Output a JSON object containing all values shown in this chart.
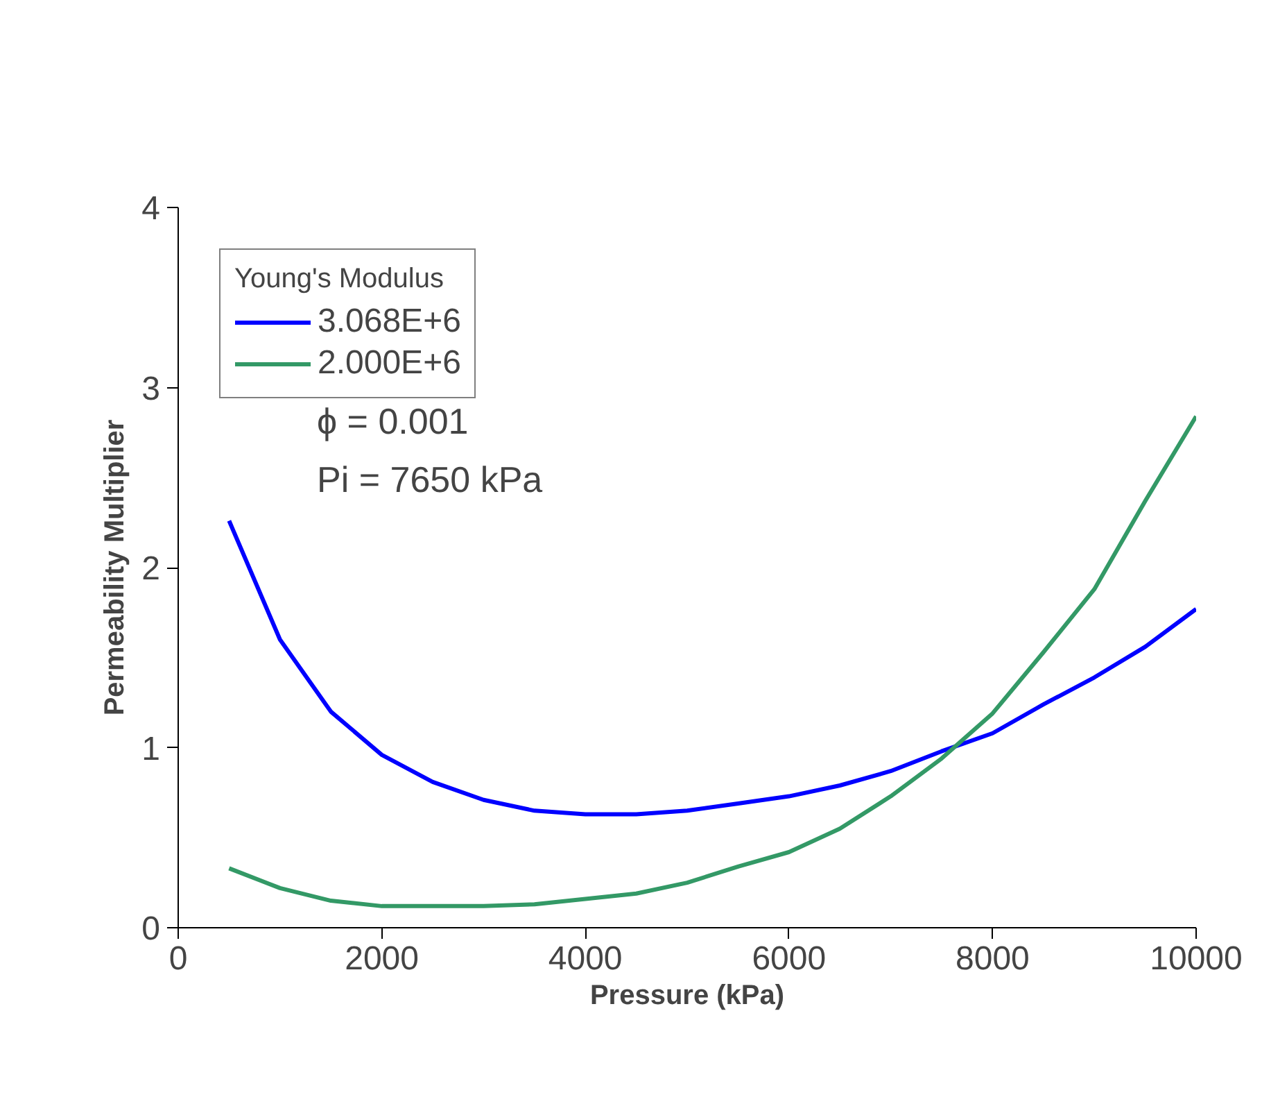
{
  "chart_data": {
    "type": "line",
    "xlabel": "Pressure (kPa)",
    "ylabel": "Permeability Multiplier",
    "legend_title": "Young's Modulus",
    "legend": "top left",
    "grid": false,
    "marker": "none",
    "line_style": "solid",
    "x": [
      500,
      1000,
      1500,
      2000,
      2500,
      3000,
      3500,
      4000,
      4500,
      5000,
      5500,
      6000,
      6500,
      7000,
      7500,
      8000,
      8500,
      9000,
      9500,
      10000
    ],
    "xlim": [
      0,
      10000
    ],
    "xticks": [
      0,
      2000,
      4000,
      6000,
      8000,
      10000
    ],
    "ylim": [
      0,
      4
    ],
    "yticks": [
      0,
      1,
      2,
      3,
      4
    ],
    "annotations": [
      "ϕ = 0.001",
      "Pi = 7650 kPa"
    ],
    "series": [
      {
        "name": "3.068E+6",
        "color": "#0000ff",
        "values": [
          2.26,
          1.6,
          1.2,
          0.96,
          0.81,
          0.71,
          0.65,
          0.63,
          0.63,
          0.65,
          0.69,
          0.73,
          0.79,
          0.87,
          0.98,
          1.08,
          1.24,
          1.39,
          1.56,
          1.77
        ]
      },
      {
        "name": "2.000E+6",
        "color": "#339966",
        "values": [
          0.33,
          0.22,
          0.15,
          0.12,
          0.12,
          0.12,
          0.13,
          0.16,
          0.19,
          0.25,
          0.34,
          0.42,
          0.55,
          0.73,
          0.94,
          1.19,
          1.53,
          1.88,
          2.37,
          2.84
        ]
      }
    ]
  }
}
